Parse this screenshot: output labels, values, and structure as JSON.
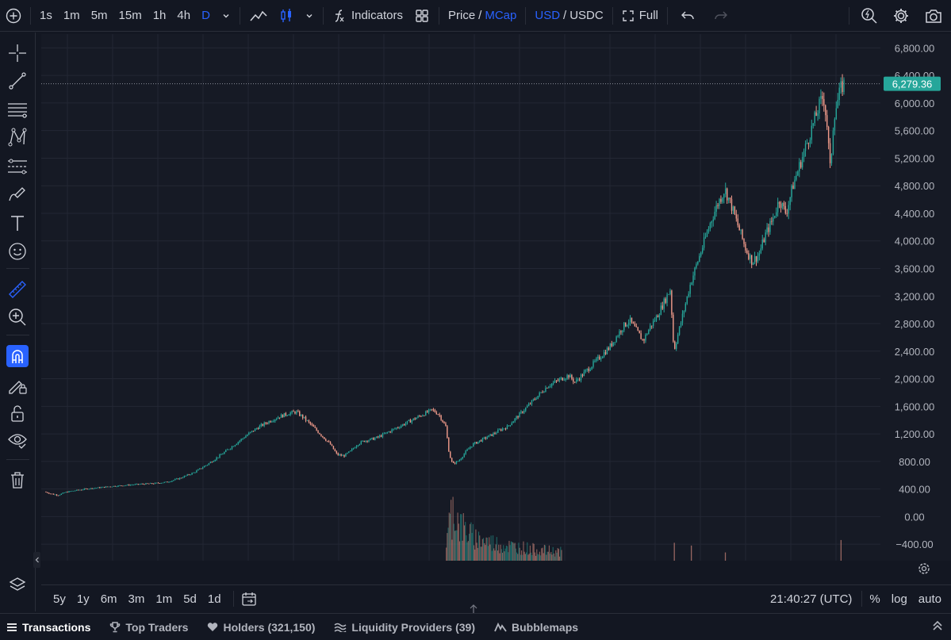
{
  "toolbar": {
    "intervals": [
      "1s",
      "1m",
      "5m",
      "15m",
      "1h",
      "4h",
      "D"
    ],
    "active_interval": "D",
    "indicators_label": "Indicators",
    "price_label": "Price",
    "slash": "/",
    "mcap_label": "MCap",
    "usd_label": "USD",
    "usdc_label": "USDC",
    "full_label": "Full"
  },
  "chart_data": {
    "type": "candlestick",
    "y_axis_labels": [
      "6,800.00",
      "6,400.00",
      "6,000.00",
      "5,600.00",
      "5,200.00",
      "4,800.00",
      "4,400.00",
      "4,000.00",
      "3,600.00",
      "3,200.00",
      "2,800.00",
      "2,400.00",
      "2,000.00",
      "1,600.00",
      "1,200.00",
      "800.00",
      "400.00",
      "0.00",
      "−400.00"
    ],
    "y_ticks": [
      6800,
      6400,
      6000,
      5600,
      5200,
      4800,
      4400,
      4000,
      3600,
      3200,
      2800,
      2400,
      2000,
      1600,
      1200,
      800,
      400,
      0,
      -400
    ],
    "ylim": [
      -640,
      7000
    ],
    "current_price": 6279.36,
    "current_price_label": "6,279.36",
    "price_path": [
      [
        0,
        360
      ],
      [
        2,
        330
      ],
      [
        4,
        310
      ],
      [
        6,
        350
      ],
      [
        8,
        370
      ],
      [
        12,
        400
      ],
      [
        16,
        420
      ],
      [
        20,
        440
      ],
      [
        24,
        455
      ],
      [
        28,
        470
      ],
      [
        32,
        480
      ],
      [
        36,
        500
      ],
      [
        40,
        560
      ],
      [
        44,
        640
      ],
      [
        48,
        760
      ],
      [
        52,
        900
      ],
      [
        56,
        1050
      ],
      [
        60,
        1200
      ],
      [
        63,
        1300
      ],
      [
        66,
        1380
      ],
      [
        69,
        1450
      ],
      [
        72,
        1500
      ],
      [
        74,
        1520
      ],
      [
        76,
        1440
      ],
      [
        78,
        1350
      ],
      [
        80,
        1250
      ],
      [
        82,
        1150
      ],
      [
        84,
        1050
      ],
      [
        86,
        900
      ],
      [
        88,
        880
      ],
      [
        90,
        950
      ],
      [
        92,
        1050
      ],
      [
        94,
        1100
      ],
      [
        96,
        1120
      ],
      [
        98,
        1150
      ],
      [
        100,
        1200
      ],
      [
        102,
        1250
      ],
      [
        104,
        1300
      ],
      [
        106,
        1350
      ],
      [
        108,
        1400
      ],
      [
        110,
        1450
      ],
      [
        112,
        1500
      ],
      [
        114,
        1550
      ],
      [
        116,
        1480
      ],
      [
        118,
        1300
      ],
      [
        119,
        900
      ],
      [
        120,
        760
      ],
      [
        122,
        820
      ],
      [
        124,
        950
      ],
      [
        126,
        1050
      ],
      [
        128,
        1100
      ],
      [
        130,
        1150
      ],
      [
        132,
        1200
      ],
      [
        134,
        1260
      ],
      [
        136,
        1300
      ],
      [
        138,
        1400
      ],
      [
        140,
        1500
      ],
      [
        142,
        1600
      ],
      [
        144,
        1700
      ],
      [
        146,
        1800
      ],
      [
        148,
        1900
      ],
      [
        150,
        1950
      ],
      [
        152,
        2000
      ],
      [
        154,
        2050
      ],
      [
        156,
        1950
      ],
      [
        158,
        2050
      ],
      [
        160,
        2150
      ],
      [
        162,
        2250
      ],
      [
        164,
        2350
      ],
      [
        166,
        2450
      ],
      [
        168,
        2600
      ],
      [
        170,
        2750
      ],
      [
        172,
        2850
      ],
      [
        174,
        2700
      ],
      [
        176,
        2550
      ],
      [
        178,
        2750
      ],
      [
        180,
        2900
      ],
      [
        182,
        3100
      ],
      [
        184,
        3300
      ],
      [
        185,
        2400
      ],
      [
        186,
        2600
      ],
      [
        188,
        3000
      ],
      [
        190,
        3400
      ],
      [
        192,
        3700
      ],
      [
        194,
        4000
      ],
      [
        196,
        4300
      ],
      [
        198,
        4550
      ],
      [
        200,
        4750
      ],
      [
        202,
        4500
      ],
      [
        204,
        4200
      ],
      [
        206,
        3900
      ],
      [
        208,
        3700
      ],
      [
        210,
        3800
      ],
      [
        212,
        4100
      ],
      [
        214,
        4300
      ],
      [
        216,
        4600
      ],
      [
        218,
        4400
      ],
      [
        220,
        4800
      ],
      [
        222,
        5100
      ],
      [
        224,
        5400
      ],
      [
        226,
        5700
      ],
      [
        228,
        6000
      ],
      [
        229,
        6100
      ],
      [
        230,
        5700
      ],
      [
        231,
        5000
      ],
      [
        232,
        5800
      ],
      [
        234,
        6200
      ],
      [
        235,
        6280
      ]
    ],
    "volume_path": [
      [
        118,
        300
      ],
      [
        119,
        700
      ],
      [
        120,
        950
      ],
      [
        122,
        650
      ],
      [
        124,
        520
      ],
      [
        126,
        430
      ],
      [
        128,
        380
      ],
      [
        130,
        350
      ],
      [
        132,
        320
      ],
      [
        134,
        290
      ],
      [
        136,
        270
      ],
      [
        138,
        250
      ],
      [
        140,
        240
      ],
      [
        142,
        220
      ],
      [
        144,
        200
      ],
      [
        146,
        190
      ],
      [
        148,
        180
      ],
      [
        150,
        170
      ],
      [
        152,
        160
      ]
    ],
    "volume_spikes": [
      [
        185,
        260
      ],
      [
        190,
        220
      ],
      [
        200,
        120
      ],
      [
        234,
        300
      ]
    ]
  },
  "bottom": {
    "ranges": [
      "5y",
      "1y",
      "6m",
      "3m",
      "1m",
      "5d",
      "1d"
    ],
    "time": "21:40:27 (UTC)",
    "percent": "%",
    "log": "log",
    "auto": "auto"
  },
  "tabs": [
    {
      "label": "Transactions",
      "icon": "list-icon"
    },
    {
      "label": "Top Traders",
      "icon": "trophy-icon"
    },
    {
      "label": "Holders (321,150)",
      "icon": "heart-icon"
    },
    {
      "label": "Liquidity Providers (39)",
      "icon": "liquidity-icon"
    },
    {
      "label": "Bubblemaps",
      "icon": "bubblemaps-icon"
    }
  ],
  "colors": {
    "background": "#131722",
    "chart_bg": "#161a25",
    "up": "#26a69a",
    "down": "#ef9a8a",
    "accent": "#2962ff",
    "price_tag": "#26a69a"
  }
}
